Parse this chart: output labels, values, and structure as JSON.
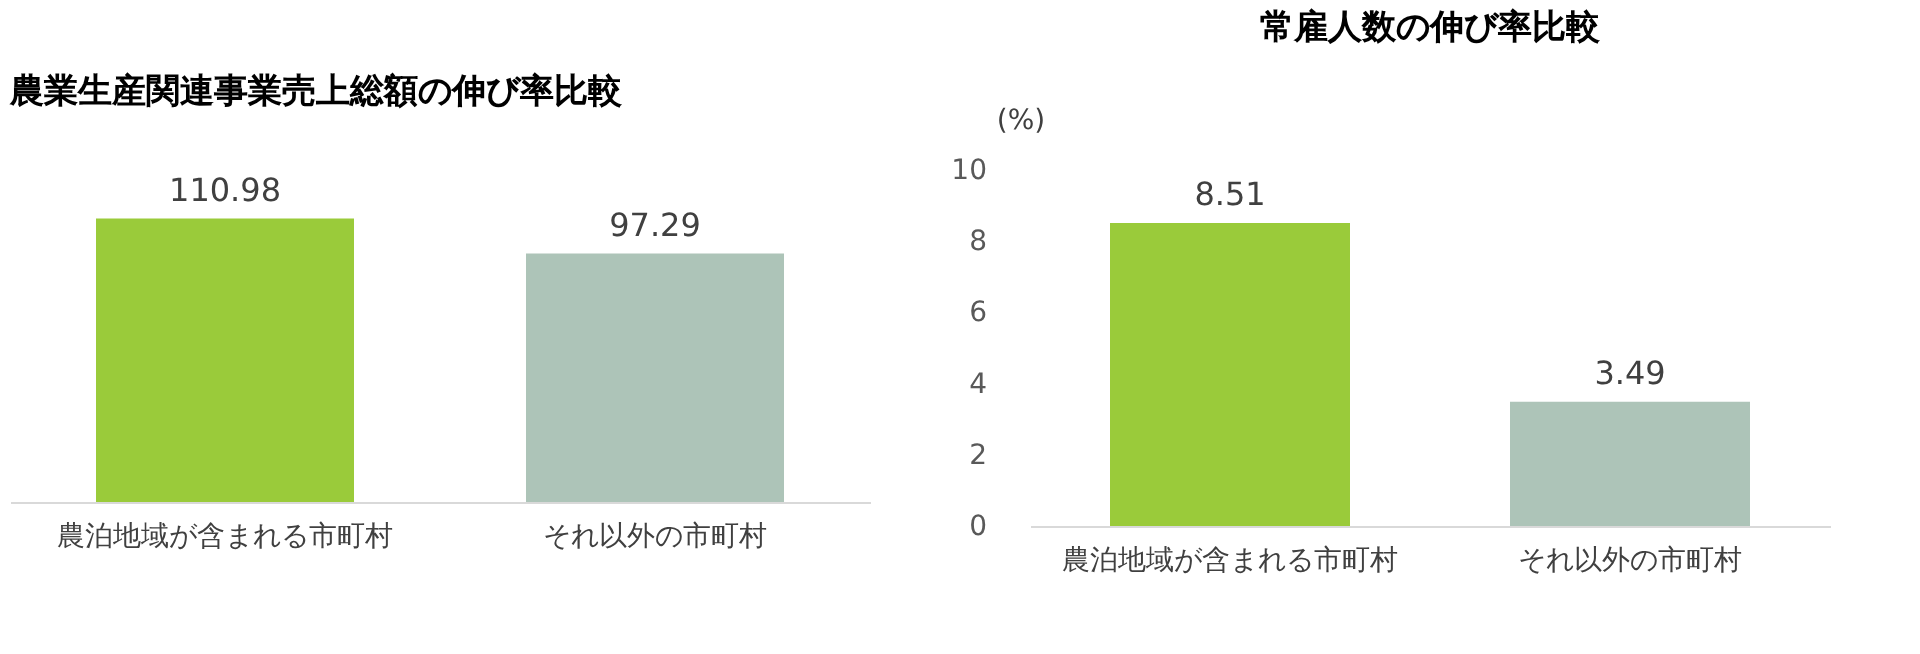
{
  "chart_data": [
    {
      "type": "bar",
      "title": "農業生産関連事業売上総額の伸び率比較",
      "categories": [
        "農泊地域が含まれる市町村",
        "それ以外の市町村"
      ],
      "values": [
        110.98,
        97.29
      ],
      "colors": [
        "#9acb3a",
        "#adc4b8"
      ],
      "data_labels": true,
      "tick_labels": "x",
      "grid": false
    },
    {
      "type": "bar",
      "title": "常雇人数の伸び率比較",
      "ylabel": "(%)",
      "categories": [
        "農泊地域が含まれる市町村",
        "それ以外の市町村"
      ],
      "values": [
        8.51,
        3.49
      ],
      "colors": [
        "#9acb3a",
        "#adc4b8"
      ],
      "ylim": [
        0,
        10
      ],
      "yticks": [
        0,
        2,
        4,
        6,
        8,
        10
      ],
      "data_labels": true,
      "grid": false
    }
  ]
}
